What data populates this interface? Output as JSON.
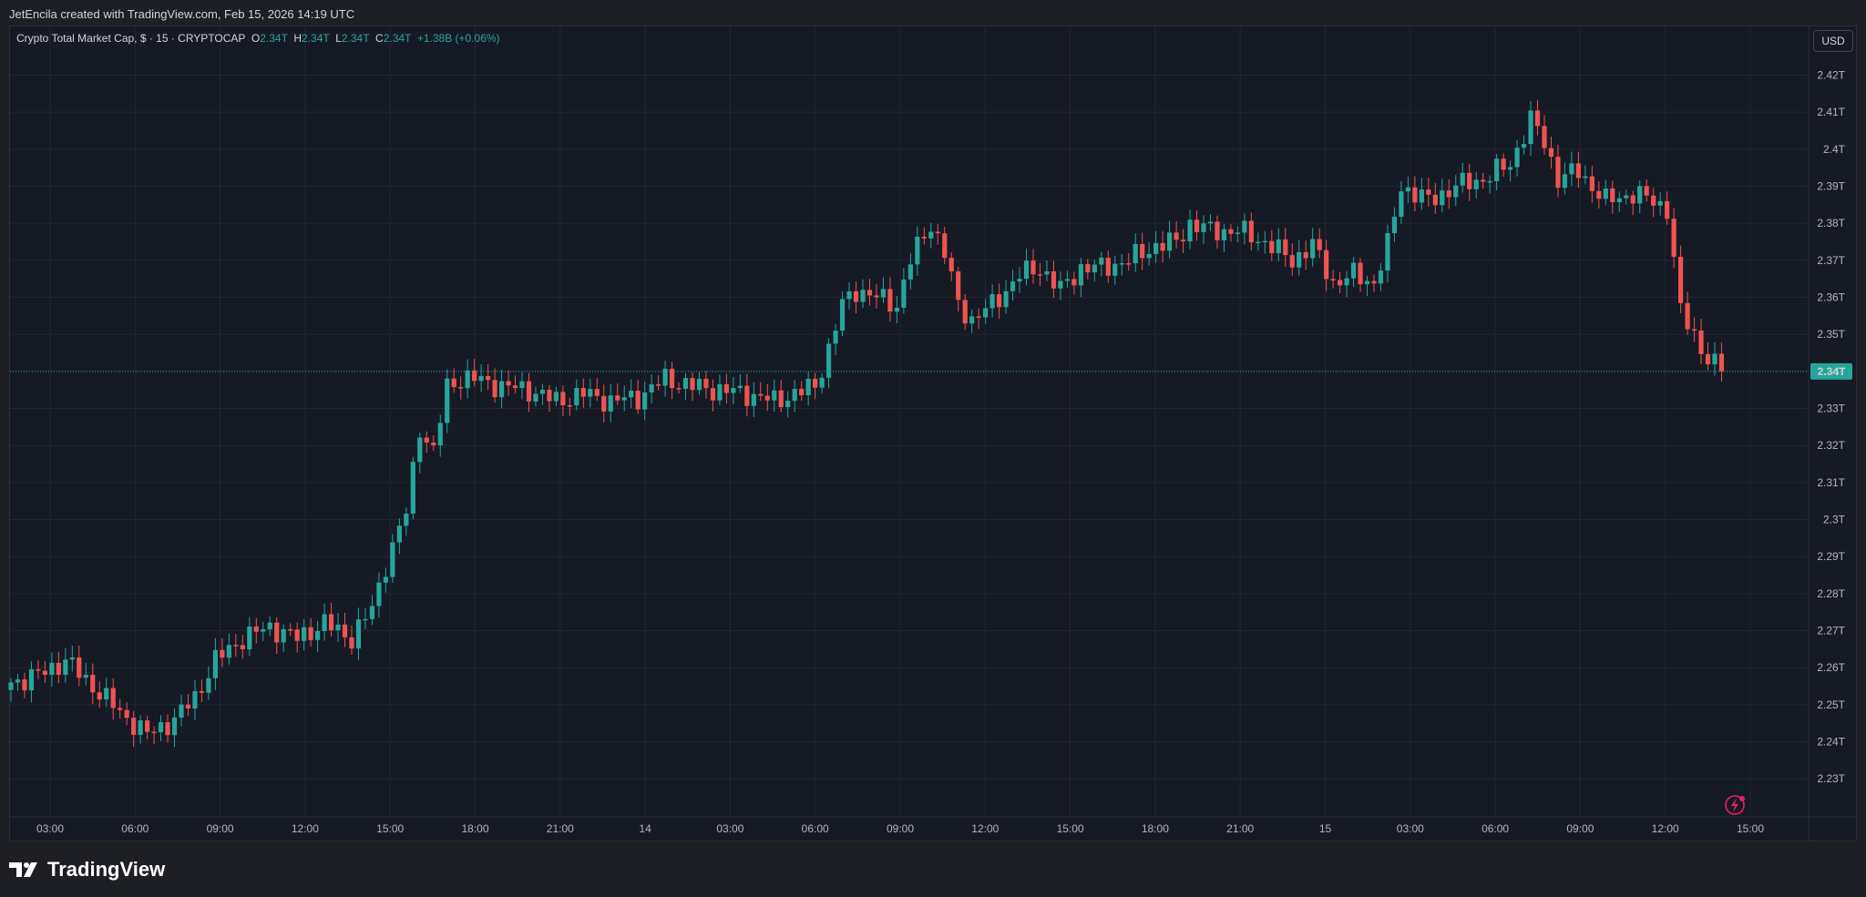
{
  "header": {
    "attribution": "JetEncila created with TradingView.com, Feb 15, 2026 14:19 UTC"
  },
  "legend": {
    "symbol": "Crypto Total Market Cap, $ · 15 · CRYPTOCAP",
    "o_label": "O",
    "o_value": "2.34T",
    "h_label": "H",
    "h_value": "2.34T",
    "l_label": "L",
    "l_value": "2.34T",
    "c_label": "C",
    "c_value": "2.34T",
    "change": "+1.38B (+0.06%)"
  },
  "currency_button": "USD",
  "footer": {
    "brand": "TradingView"
  },
  "colors": {
    "up": "#26a69a",
    "down": "#ef5350",
    "background": "#161a25",
    "grid": "#232735",
    "axis_text": "#b2b5be"
  },
  "icons": [
    "tradingview-logo-icon",
    "lightning-icon"
  ],
  "chart_data": {
    "type": "candlestick",
    "title": "Crypto Total Market Cap, $ · 15 · CRYPTOCAP",
    "ylabel": "",
    "ylim": [
      2.22,
      2.425
    ],
    "y_unit": "T",
    "y_ticks": [
      "2.42T",
      "2.41T",
      "2.4T",
      "2.39T",
      "2.38T",
      "2.37T",
      "2.36T",
      "2.35T",
      "2.34T",
      "2.33T",
      "2.32T",
      "2.31T",
      "2.3T",
      "2.29T",
      "2.28T",
      "2.27T",
      "2.26T",
      "2.25T",
      "2.24T",
      "2.23T"
    ],
    "x_ticks": [
      "03:00",
      "06:00",
      "09:00",
      "12:00",
      "15:00",
      "18:00",
      "21:00",
      "14",
      "03:00",
      "06:00",
      "09:00",
      "12:00",
      "15:00",
      "18:00",
      "21:00",
      "15",
      "03:00",
      "06:00",
      "09:00",
      "12:00",
      "15:00"
    ],
    "interval": "15 minutes",
    "last_price": 2.34,
    "last_price_label": "2.34T",
    "anchors": [
      [
        0,
        2.256
      ],
      [
        4,
        2.258
      ],
      [
        8,
        2.262
      ],
      [
        12,
        2.255
      ],
      [
        16,
        2.248
      ],
      [
        20,
        2.242
      ],
      [
        24,
        2.246
      ],
      [
        27,
        2.252
      ],
      [
        30,
        2.262
      ],
      [
        34,
        2.268
      ],
      [
        38,
        2.271
      ],
      [
        42,
        2.268
      ],
      [
        46,
        2.272
      ],
      [
        50,
        2.268
      ],
      [
        53,
        2.276
      ],
      [
        55,
        2.288
      ],
      [
        58,
        2.302
      ],
      [
        60,
        2.325
      ],
      [
        62,
        2.318
      ],
      [
        64,
        2.336
      ],
      [
        66,
        2.338
      ],
      [
        68,
        2.338
      ],
      [
        72,
        2.336
      ],
      [
        76,
        2.335
      ],
      [
        80,
        2.332
      ],
      [
        84,
        2.334
      ],
      [
        88,
        2.332
      ],
      [
        92,
        2.333
      ],
      [
        96,
        2.338
      ],
      [
        100,
        2.336
      ],
      [
        104,
        2.335
      ],
      [
        108,
        2.334
      ],
      [
        112,
        2.332
      ],
      [
        115,
        2.334
      ],
      [
        118,
        2.336
      ],
      [
        120,
        2.346
      ],
      [
        122,
        2.358
      ],
      [
        124,
        2.362
      ],
      [
        127,
        2.36
      ],
      [
        130,
        2.358
      ],
      [
        132,
        2.37
      ],
      [
        135,
        2.38
      ],
      [
        137,
        2.372
      ],
      [
        139,
        2.358
      ],
      [
        141,
        2.354
      ],
      [
        144,
        2.358
      ],
      [
        148,
        2.366
      ],
      [
        151,
        2.368
      ],
      [
        154,
        2.362
      ],
      [
        157,
        2.368
      ],
      [
        160,
        2.368
      ],
      [
        164,
        2.37
      ],
      [
        168,
        2.374
      ],
      [
        171,
        2.375
      ],
      [
        173,
        2.38
      ],
      [
        176,
        2.378
      ],
      [
        180,
        2.378
      ],
      [
        184,
        2.375
      ],
      [
        188,
        2.37
      ],
      [
        191,
        2.374
      ],
      [
        194,
        2.364
      ],
      [
        197,
        2.366
      ],
      [
        200,
        2.364
      ],
      [
        202,
        2.374
      ],
      [
        204,
        2.39
      ],
      [
        208,
        2.386
      ],
      [
        212,
        2.39
      ],
      [
        216,
        2.392
      ],
      [
        220,
        2.396
      ],
      [
        223,
        2.408
      ],
      [
        225,
        2.402
      ],
      [
        227,
        2.392
      ],
      [
        230,
        2.394
      ],
      [
        234,
        2.386
      ],
      [
        238,
        2.388
      ],
      [
        241,
        2.386
      ],
      [
        243,
        2.384
      ],
      [
        245,
        2.356
      ],
      [
        247,
        2.35
      ],
      [
        249,
        2.343
      ],
      [
        251,
        2.34
      ]
    ],
    "candles_count": 252
  }
}
